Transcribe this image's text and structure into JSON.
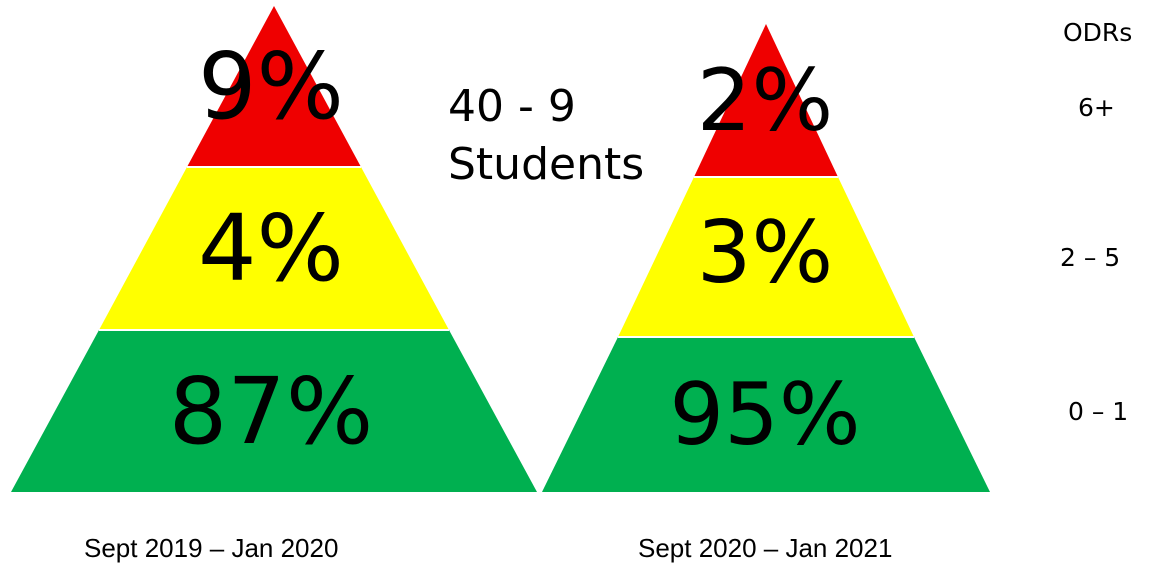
{
  "colors": {
    "red": "#ef0000",
    "yellow": "#ffff00",
    "green": "#00b050",
    "text": "#000000"
  },
  "legend": {
    "heading": "ODRs",
    "tiers": [
      "6+",
      "2 – 5",
      "0 – 1"
    ]
  },
  "note": {
    "line1": "40 - 9",
    "line2": "Students"
  },
  "pyramids": [
    {
      "caption": "Sept 2019 – Jan 2020",
      "tiers": [
        {
          "odr_range": "6+",
          "label": "9%",
          "value": 9,
          "color": "red"
        },
        {
          "odr_range": "2 – 5",
          "label": "4%",
          "value": 4,
          "color": "yellow"
        },
        {
          "odr_range": "0 – 1",
          "label": "87%",
          "value": 87,
          "color": "green"
        }
      ]
    },
    {
      "caption": "Sept 2020 – Jan 2021",
      "tiers": [
        {
          "odr_range": "6+",
          "label": "2%",
          "value": 2,
          "color": "red"
        },
        {
          "odr_range": "2 – 5",
          "label": "3%",
          "value": 3,
          "color": "yellow"
        },
        {
          "odr_range": "0 – 1",
          "label": "95%",
          "value": 95,
          "color": "green"
        }
      ]
    }
  ]
}
